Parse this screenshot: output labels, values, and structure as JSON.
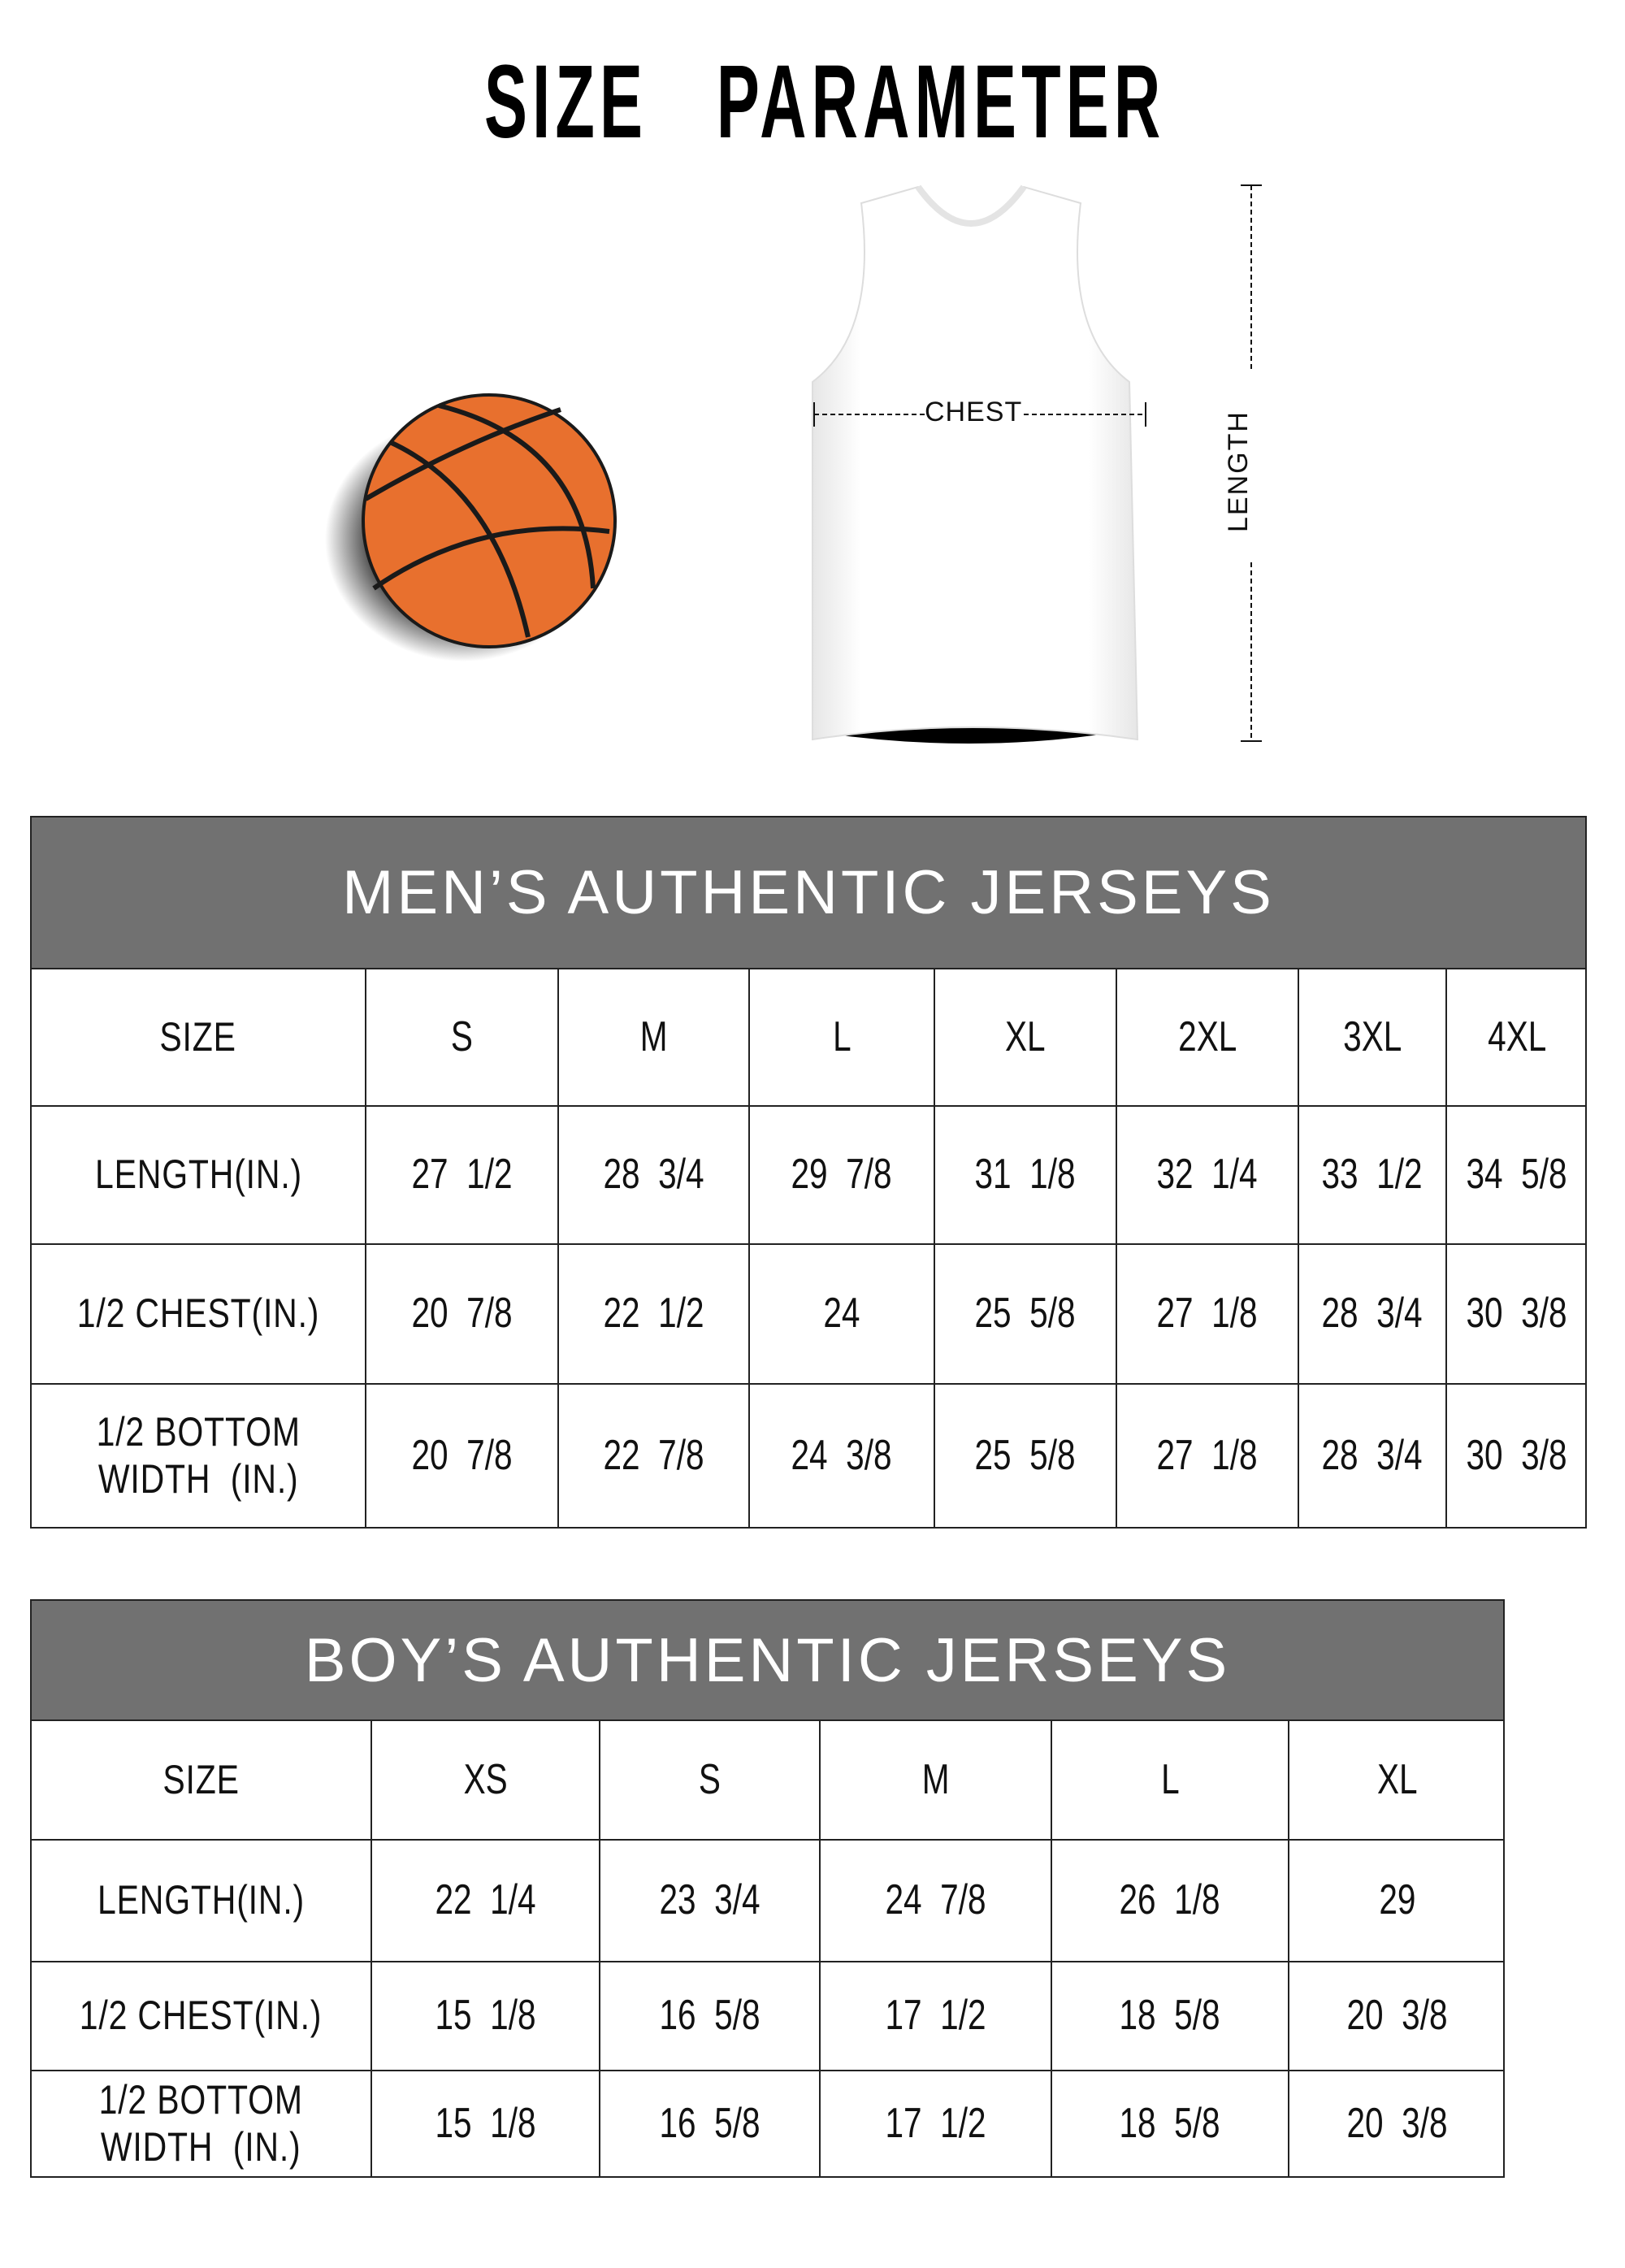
{
  "title": "SIZE   PARAMETER",
  "diagram": {
    "chest_label": "CHEST",
    "length_label": "LENGTH",
    "ball_color": "#e8702e",
    "jersey_color": "#ffffff"
  },
  "colors": {
    "header_bg": "#717171",
    "header_text": "#ffffff",
    "border": "#222222"
  },
  "mens": {
    "title": "MEN’S AUTHENTIC JERSEYS",
    "columns": [
      "SIZE",
      "S",
      "M",
      "L",
      "XL",
      "2XL",
      "3XL",
      "4XL"
    ],
    "rows": [
      [
        "LENGTH(IN.)",
        "27  1/2",
        "28  3/4",
        "29  7/8",
        "31  1/8",
        "32  1/4",
        "33  1/2",
        "34  5/8"
      ],
      [
        "1/2 CHEST(IN.)",
        "20  7/8",
        "22  1/2",
        "24",
        "25  5/8",
        "27  1/8",
        "28  3/4",
        "30  3/8"
      ],
      [
        "1/2 BOTTOM\nWIDTH  (IN.)",
        "20  7/8",
        "22  7/8",
        "24  3/8",
        "25  5/8",
        "27  1/8",
        "28  3/4",
        "30  3/8"
      ]
    ]
  },
  "boys": {
    "title": "BOY’S AUTHENTIC JERSEYS",
    "columns": [
      "SIZE",
      "XS",
      "S",
      "M",
      "L",
      "XL"
    ],
    "rows": [
      [
        "LENGTH(IN.)",
        "22  1/4",
        "23  3/4",
        "24  7/8",
        "26  1/8",
        "29"
      ],
      [
        "1/2 CHEST(IN.)",
        "15  1/8",
        "16  5/8",
        "17  1/2",
        "18  5/8",
        "20  3/8"
      ],
      [
        "1/2 BOTTOM\nWIDTH  (IN.)",
        "15  1/8",
        "16  5/8",
        "17  1/2",
        "18  5/8",
        "20  3/8"
      ]
    ]
  }
}
